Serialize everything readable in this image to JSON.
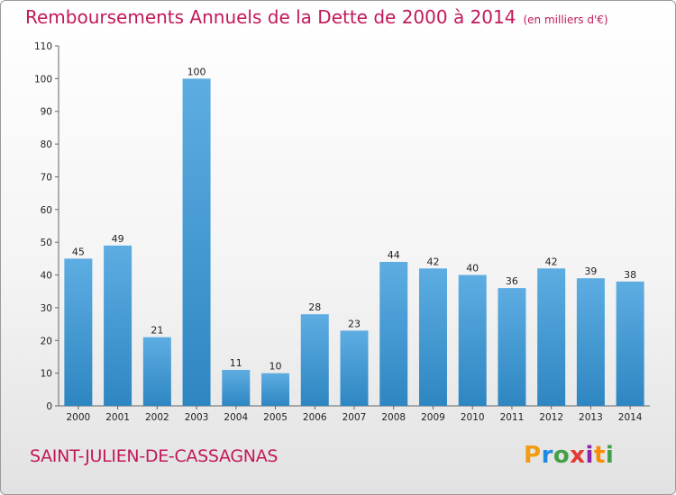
{
  "title": "Remboursements Annuels de la Dette de 2000 à 2014",
  "unit": "(en milliers d'€)",
  "commune": "SAINT-JULIEN-DE-CASSAGNAS",
  "logo": {
    "letters": [
      "P",
      "r",
      "o",
      "x",
      "i",
      "t",
      "i"
    ],
    "colors": [
      "#f39c12",
      "#1e88e5",
      "#43a047",
      "#e53935",
      "#8e24aa",
      "#fb8c00",
      "#43a047"
    ]
  },
  "colors": {
    "bar_top": "#5dade2",
    "bar_bottom": "#2e86c1",
    "title": "#c2185b"
  },
  "chart_data": {
    "type": "bar",
    "title": "Remboursements Annuels de la Dette de 2000 à 2014",
    "categories": [
      "2000",
      "2001",
      "2002",
      "2003",
      "2004",
      "2005",
      "2006",
      "2007",
      "2008",
      "2009",
      "2010",
      "2011",
      "2012",
      "2013",
      "2014"
    ],
    "values": [
      45,
      49,
      21,
      100,
      11,
      10,
      28,
      23,
      44,
      42,
      40,
      36,
      42,
      39,
      38
    ],
    "ylim": [
      0,
      110
    ],
    "yticks": [
      0,
      10,
      20,
      30,
      40,
      50,
      60,
      70,
      80,
      90,
      100,
      110
    ],
    "xlabel": "",
    "ylabel": "",
    "grid": false,
    "legend": "none"
  }
}
